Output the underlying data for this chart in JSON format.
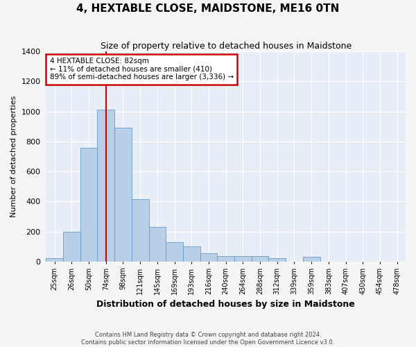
{
  "title": "4, HEXTABLE CLOSE, MAIDSTONE, ME16 0TN",
  "subtitle": "Size of property relative to detached houses in Maidstone",
  "xlabel": "Distribution of detached houses by size in Maidstone",
  "ylabel": "Number of detached properties",
  "bar_color": "#b8cfe8",
  "bar_edge_color": "#6699cc",
  "bg_color": "#e8eef8",
  "grid_color": "#ffffff",
  "annotation_box_color": "#cc0000",
  "vline_color": "#cc0000",
  "categories": [
    "25sqm",
    "26sqm",
    "50sqm",
    "74sqm",
    "98sqm",
    "121sqm",
    "145sqm",
    "169sqm",
    "193sqm",
    "216sqm",
    "240sqm",
    "264sqm",
    "288sqm",
    "312sqm",
    "339sqm",
    "359sqm",
    "383sqm",
    "407sqm",
    "430sqm",
    "454sqm",
    "478sqm"
  ],
  "values": [
    20,
    200,
    760,
    1010,
    890,
    415,
    230,
    130,
    100,
    55,
    35,
    35,
    35,
    20,
    0,
    30,
    0,
    0,
    0,
    0,
    0
  ],
  "ylim": [
    0,
    1400
  ],
  "yticks": [
    0,
    200,
    400,
    600,
    800,
    1000,
    1200,
    1400
  ],
  "vline_x_idx": 3.0,
  "annotation_text_line1": "4 HEXTABLE CLOSE: 82sqm",
  "annotation_text_line2": "← 11% of detached houses are smaller (410)",
  "annotation_text_line3": "89% of semi-detached houses are larger (3,336) →",
  "footer_line1": "Contains HM Land Registry data © Crown copyright and database right 2024.",
  "footer_line2": "Contains public sector information licensed under the Open Government Licence v3.0."
}
